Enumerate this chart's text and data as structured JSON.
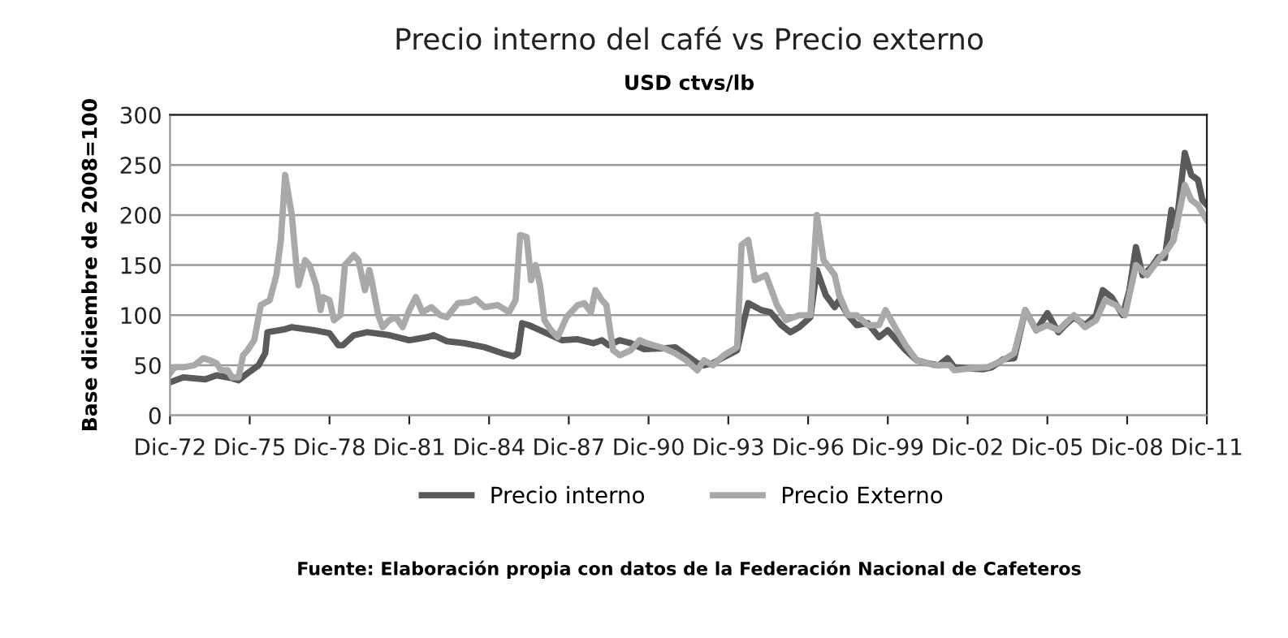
{
  "chart_data": {
    "type": "line",
    "title": "Precio interno del café vs Precio externo",
    "subtitle": "USD ctvs/lb",
    "ylabel": "Base diciembre de 2008=100",
    "annotations": [
      "Fuente: Elaboración propia con datos de la Federación Nacional de Cafeteros"
    ],
    "xlim": [
      "1972-12",
      "2011-12"
    ],
    "xticks": [
      {
        "value": "1972-12",
        "label": "Dic-72"
      },
      {
        "value": "1975-12",
        "label": "Dic-75"
      },
      {
        "value": "1978-12",
        "label": "Dic-78"
      },
      {
        "value": "1981-12",
        "label": "Dic-81"
      },
      {
        "value": "1984-12",
        "label": "Dic-84"
      },
      {
        "value": "1987-12",
        "label": "Dic-87"
      },
      {
        "value": "1990-12",
        "label": "Dic-90"
      },
      {
        "value": "1993-12",
        "label": "Dic-93"
      },
      {
        "value": "1996-12",
        "label": "Dic-96"
      },
      {
        "value": "1999-12",
        "label": "Dic-99"
      },
      {
        "value": "2002-12",
        "label": "Dic-02"
      },
      {
        "value": "2005-12",
        "label": "Dic-05"
      },
      {
        "value": "2008-12",
        "label": "Dic-08"
      },
      {
        "value": "2011-12",
        "label": "Dic-11"
      }
    ],
    "ylim": [
      0,
      300
    ],
    "yticks": [
      0,
      50,
      100,
      150,
      200,
      250,
      300
    ],
    "grid": "y",
    "legend": "bottom",
    "marker": "none",
    "line_style": "solid",
    "series": [
      {
        "name": "Precio interno",
        "color": "#5a5a5a",
        "x": [
          "1972-12",
          "1973-06",
          "1974-04",
          "1974-09",
          "1975-04",
          "1975-07",
          "1975-11",
          "1976-04",
          "1976-07",
          "1976-08",
          "1977-04",
          "1977-07",
          "1978-05",
          "1978-12",
          "1979-04",
          "1979-06",
          "1979-11",
          "1980-05",
          "1981-03",
          "1981-12",
          "1982-08",
          "1982-11",
          "1983-05",
          "1984-01",
          "1984-10",
          "1985-06",
          "1985-11",
          "1986-01",
          "1986-03",
          "1986-06",
          "1986-11",
          "1987-04",
          "1987-09",
          "1988-04",
          "1988-11",
          "1989-03",
          "1989-06",
          "1989-11",
          "1990-04",
          "1990-10",
          "1991-07",
          "1991-12",
          "1992-05",
          "1992-10",
          "1993-01",
          "1993-05",
          "1993-10",
          "1994-04",
          "1994-06",
          "1994-09",
          "1995-03",
          "1995-07",
          "1995-12",
          "1996-04",
          "1996-08",
          "1997-01",
          "1997-04",
          "1997-08",
          "1997-12",
          "1998-02",
          "1998-06",
          "1998-10",
          "1999-03",
          "1999-08",
          "1999-12",
          "2000-04",
          "2000-08",
          "2001-01",
          "2001-06",
          "2001-11",
          "2002-03",
          "2002-06",
          "2002-11",
          "2003-07",
          "2003-11",
          "2004-04",
          "2004-09",
          "2005-02",
          "2005-07",
          "2005-12",
          "2006-05",
          "2006-08",
          "2006-12",
          "2007-05",
          "2007-10",
          "2008-01",
          "2008-05",
          "2008-10",
          "2009-01",
          "2009-04",
          "2009-07",
          "2009-11",
          "2010-02",
          "2010-05",
          "2010-08",
          "2010-10",
          "2011-02",
          "2011-05",
          "2011-08",
          "2011-10",
          "2011-12"
        ],
        "values": [
          33,
          38,
          36,
          40,
          37,
          35,
          42,
          50,
          62,
          83,
          86,
          88,
          85,
          82,
          70,
          70,
          80,
          83,
          80,
          75,
          78,
          80,
          74,
          72,
          68,
          62,
          59,
          62,
          92,
          90,
          85,
          80,
          75,
          76,
          72,
          75,
          70,
          75,
          72,
          66,
          67,
          68,
          60,
          52,
          50,
          52,
          58,
          65,
          85,
          112,
          105,
          103,
          90,
          83,
          88,
          98,
          145,
          120,
          108,
          115,
          100,
          90,
          92,
          78,
          85,
          75,
          65,
          55,
          52,
          50,
          57,
          48,
          47,
          46,
          48,
          56,
          57,
          105,
          85,
          102,
          83,
          90,
          98,
          90,
          100,
          125,
          118,
          100,
          125,
          168,
          140,
          148,
          158,
          157,
          205,
          185,
          262,
          240,
          235,
          215,
          210
        ]
      },
      {
        "name": "Precio Externo",
        "color": "#a9a9a9",
        "x": [
          "1972-12",
          "1973-02",
          "1973-06",
          "1973-11",
          "1974-03",
          "1974-06",
          "1974-09",
          "1974-11",
          "1975-02",
          "1975-04",
          "1975-07",
          "1975-09",
          "1975-11",
          "1976-02",
          "1976-05",
          "1976-09",
          "1976-12",
          "1977-02",
          "1977-04",
          "1977-07",
          "1977-09",
          "1977-10",
          "1978-01",
          "1978-03",
          "1978-06",
          "1978-08",
          "1978-09",
          "1978-12",
          "1979-02",
          "1979-05",
          "1979-07",
          "1979-11",
          "1980-01",
          "1980-04",
          "1980-06",
          "1980-07",
          "1980-10",
          "1980-12",
          "1981-03",
          "1981-06",
          "1981-09",
          "1981-12",
          "1982-03",
          "1982-06",
          "1982-10",
          "1983-02",
          "1983-05",
          "1983-10",
          "1984-03",
          "1984-06",
          "1984-10",
          "1985-04",
          "1985-09",
          "1985-12",
          "1986-02",
          "1986-05",
          "1986-07",
          "1986-09",
          "1986-11",
          "1987-01",
          "1987-04",
          "1987-07",
          "1987-11",
          "1988-04",
          "1988-07",
          "1988-10",
          "1988-12",
          "1989-03",
          "1989-05",
          "1989-08",
          "1989-11",
          "1990-04",
          "1990-08",
          "1990-11",
          "1991-02",
          "1991-07",
          "1991-12",
          "1992-05",
          "1992-10",
          "1993-01",
          "1993-05",
          "1993-10",
          "1994-04",
          "1994-06",
          "1994-09",
          "1994-12",
          "1995-05",
          "1995-10",
          "1996-02",
          "1996-08",
          "1997-01",
          "1997-04",
          "1997-07",
          "1997-12",
          "1998-02",
          "1998-06",
          "1998-10",
          "1999-03",
          "1999-08",
          "1999-11",
          "2000-04",
          "2000-08",
          "2001-01",
          "2001-09",
          "2002-04",
          "2002-06",
          "2003-02",
          "2003-09",
          "2004-04",
          "2004-09",
          "2005-02",
          "2005-07",
          "2005-12",
          "2006-05",
          "2006-12",
          "2007-05",
          "2007-10",
          "2008-02",
          "2008-07",
          "2008-11",
          "2009-04",
          "2009-09",
          "2010-02",
          "2010-06",
          "2010-09",
          "2011-02",
          "2011-05",
          "2011-08",
          "2011-12"
        ],
        "values": [
          42,
          48,
          48,
          50,
          57,
          55,
          52,
          45,
          45,
          38,
          38,
          60,
          65,
          75,
          110,
          115,
          140,
          175,
          240,
          200,
          150,
          130,
          155,
          150,
          130,
          105,
          118,
          115,
          95,
          100,
          150,
          160,
          155,
          125,
          145,
          135,
          100,
          88,
          95,
          98,
          88,
          105,
          118,
          103,
          108,
          100,
          98,
          112,
          113,
          116,
          108,
          110,
          103,
          115,
          180,
          178,
          135,
          150,
          130,
          95,
          85,
          78,
          98,
          110,
          112,
          103,
          125,
          115,
          110,
          65,
          60,
          65,
          75,
          72,
          70,
          67,
          62,
          55,
          45,
          55,
          50,
          60,
          68,
          170,
          175,
          135,
          140,
          110,
          95,
          100,
          100,
          200,
          155,
          140,
          120,
          100,
          100,
          90,
          90,
          105,
          85,
          70,
          55,
          50,
          50,
          45,
          47,
          48,
          55,
          62,
          105,
          85,
          90,
          85,
          100,
          88,
          95,
          115,
          110,
          100,
          150,
          140,
          155,
          165,
          175,
          230,
          215,
          210,
          195
        ]
      }
    ]
  }
}
